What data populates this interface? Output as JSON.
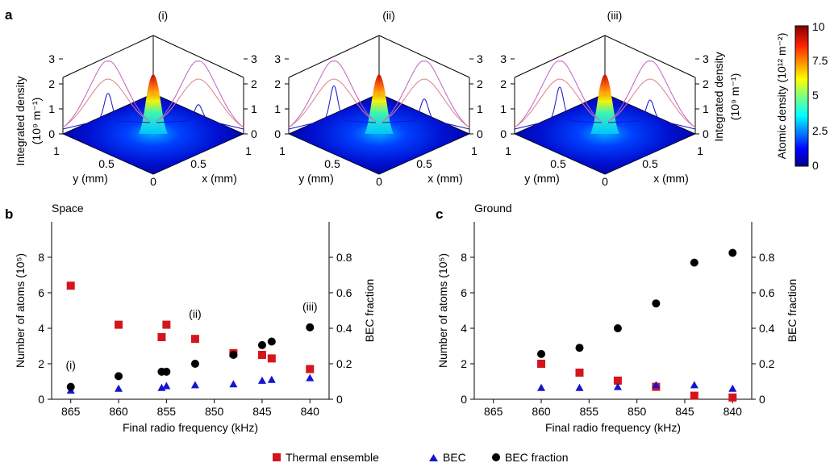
{
  "panel_labels": {
    "a": "a",
    "b": "b",
    "c": "c"
  },
  "panel_a": {
    "subpanels": [
      "(i)",
      "(ii)",
      "(iii)"
    ],
    "z_ticks": [
      "0",
      "1",
      "2",
      "3"
    ],
    "floor_ticks": [
      "1",
      "0.5",
      "0",
      "0.5",
      "1"
    ],
    "y_axis_label": "y (mm)",
    "x_axis_label": "x (mm)",
    "right_axis_label": "Integrated density",
    "right_axis_unit": "(10⁹ m⁻¹)",
    "left_axis_label": "Integrated density",
    "left_axis_unit": "(10⁹ m⁻¹)"
  },
  "colorbar": {
    "label": "Atomic density (10¹² m⁻²)",
    "ticks": [
      "0",
      "2.5",
      "5",
      "7.5",
      "10"
    ],
    "colors": [
      "#00008f",
      "#0000ff",
      "#0080ff",
      "#00ffff",
      "#80ff80",
      "#ffff00",
      "#ff8000",
      "#ff0000",
      "#800000"
    ]
  },
  "colors": {
    "thermal": "#d4161c",
    "bec": "#1414d2",
    "fraction": "#000000",
    "thermal_line": "#e0808a",
    "fit_line": "#c060c0"
  },
  "legend": {
    "thermal": "Thermal ensemble",
    "bec": "BEC",
    "fraction": "BEC fraction"
  },
  "chart_data": [
    {
      "type": "scatter",
      "title": "Space",
      "xlabel": "Final radio frequency (kHz)",
      "ylabel": "Number of atoms (10⁵)",
      "y2label": "BEC fraction",
      "xlim": [
        867,
        838
      ],
      "ylim": [
        0,
        10
      ],
      "y2lim": [
        0,
        1
      ],
      "xticks": [
        865,
        860,
        855,
        850,
        845,
        840
      ],
      "yticks": [
        0,
        2,
        4,
        6,
        8
      ],
      "y2ticks": [
        "0",
        "0.2",
        "0.4",
        "0.6",
        "0.8"
      ],
      "annotations": [
        {
          "text": "(i)",
          "x": 865,
          "y": 1.7
        },
        {
          "text": "(ii)",
          "x": 852,
          "y": 4.6
        },
        {
          "text": "(iii)",
          "x": 840,
          "y": 5.0
        }
      ],
      "series": [
        {
          "name": "Thermal ensemble",
          "marker": "square",
          "axis": "left",
          "x": [
            865,
            860,
            855.5,
            855,
            852,
            848,
            845,
            844,
            840
          ],
          "y": [
            6.4,
            4.2,
            3.5,
            4.2,
            3.4,
            2.6,
            2.5,
            2.3,
            1.7
          ]
        },
        {
          "name": "BEC",
          "marker": "triangle",
          "axis": "left",
          "x": [
            865,
            860,
            855.5,
            855,
            852,
            848,
            845,
            844,
            840
          ],
          "y": [
            0.5,
            0.6,
            0.65,
            0.75,
            0.8,
            0.85,
            1.05,
            1.1,
            1.2
          ]
        },
        {
          "name": "BEC fraction",
          "marker": "circle",
          "axis": "right",
          "x": [
            865,
            860,
            855.5,
            855,
            852,
            848,
            845,
            844,
            840
          ],
          "y": [
            0.07,
            0.13,
            0.155,
            0.155,
            0.2,
            0.25,
            0.305,
            0.325,
            0.405
          ]
        }
      ]
    },
    {
      "type": "scatter",
      "title": "Ground",
      "xlabel": "Final radio frequency (kHz)",
      "ylabel": "Number of atoms (10⁵)",
      "y2label": "BEC fraction",
      "xlim": [
        867,
        838
      ],
      "ylim": [
        0,
        10
      ],
      "y2lim": [
        0,
        1
      ],
      "xticks": [
        865,
        860,
        855,
        850,
        845,
        840
      ],
      "yticks": [
        0,
        2,
        4,
        6,
        8
      ],
      "y2ticks": [
        "0",
        "0.2",
        "0.4",
        "0.6",
        "0.8"
      ],
      "series": [
        {
          "name": "Thermal ensemble",
          "marker": "square",
          "axis": "left",
          "x": [
            860,
            856,
            852,
            848,
            844,
            840
          ],
          "y": [
            2.0,
            1.5,
            1.05,
            0.7,
            0.2,
            0.1
          ]
        },
        {
          "name": "BEC",
          "marker": "triangle",
          "axis": "left",
          "x": [
            860,
            856,
            852,
            848,
            844,
            840
          ],
          "y": [
            0.65,
            0.65,
            0.7,
            0.8,
            0.8,
            0.6
          ]
        },
        {
          "name": "BEC fraction",
          "marker": "circle",
          "axis": "right",
          "x": [
            860,
            856,
            852,
            848,
            844,
            840
          ],
          "y": [
            0.255,
            0.29,
            0.4,
            0.54,
            0.77,
            0.825
          ]
        }
      ]
    }
  ]
}
